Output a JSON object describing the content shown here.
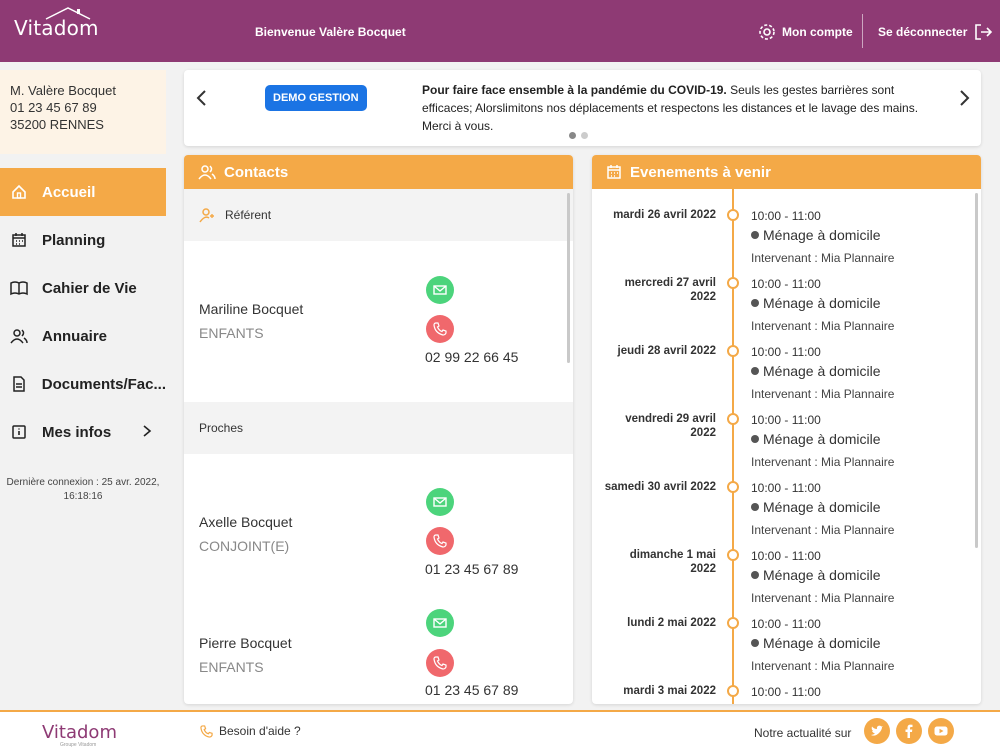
{
  "header": {
    "logo": "Vitadom",
    "welcome": "Bienvenue Valère Bocquet",
    "account_label": "Mon compte",
    "logout_label": "Se déconnecter"
  },
  "user": {
    "name": "M. Valère Bocquet",
    "phone": "01 23 45 67 89",
    "address": "35200 RENNES"
  },
  "menu": [
    {
      "label": "Accueil",
      "icon": "home-icon",
      "active": true
    },
    {
      "label": "Planning",
      "icon": "calendar-icon"
    },
    {
      "label": "Cahier de Vie",
      "icon": "book-icon"
    },
    {
      "label": "Annuaire",
      "icon": "people-icon"
    },
    {
      "label": "Documents/Fac...",
      "icon": "document-icon"
    },
    {
      "label": "Mes infos",
      "icon": "info-icon"
    }
  ],
  "last_login": "Dernière connexion : 25 avr. 2022, 16:18:16",
  "banner": {
    "badge": "DEMO GESTION",
    "text_bold": "Pour faire face ensemble à la pandémie du COVID-19.",
    "text_rest": " Seuls les gestes barrières sont efficaces; Alorslimitons nos déplacements et respectons les distances et le lavage des mains. Merci à vous."
  },
  "contacts": {
    "title": "Contacts",
    "section_referent": "Référent",
    "section_proches": "Proches",
    "referent": [
      {
        "name": "Mariline Bocquet",
        "role": "ENFANTS",
        "phone": "02 99 22 66 45"
      }
    ],
    "proches": [
      {
        "name": "Axelle Bocquet",
        "role": "CONJOINT(E)",
        "phone": "01 23 45 67 89"
      },
      {
        "name": "Pierre Bocquet",
        "role": "ENFANTS",
        "phone": "01 23 45 67 89"
      }
    ]
  },
  "events": {
    "title": "Evenements à venir",
    "items": [
      {
        "date": "mardi 26 avril 2022",
        "time": "10:00 - 11:00",
        "title": "Ménage à domicile",
        "who": "Intervenant : Mia Plannaire"
      },
      {
        "date": "mercredi 27 avril 2022",
        "time": "10:00 - 11:00",
        "title": "Ménage à domicile",
        "who": "Intervenant : Mia Plannaire"
      },
      {
        "date": "jeudi 28 avril 2022",
        "time": "10:00 - 11:00",
        "title": "Ménage à domicile",
        "who": "Intervenant : Mia Plannaire"
      },
      {
        "date": "vendredi 29 avril 2022",
        "time": "10:00 - 11:00",
        "title": "Ménage à domicile",
        "who": "Intervenant : Mia Plannaire"
      },
      {
        "date": "samedi 30 avril 2022",
        "time": "10:00 - 11:00",
        "title": "Ménage à domicile",
        "who": "Intervenant : Mia Plannaire"
      },
      {
        "date": "dimanche 1 mai 2022",
        "time": "10:00 - 11:00",
        "title": "Ménage à domicile",
        "who": "Intervenant : Mia Plannaire"
      },
      {
        "date": "lundi 2 mai 2022",
        "time": "10:00 - 11:00",
        "title": "Ménage à domicile",
        "who": "Intervenant : Mia Plannaire"
      },
      {
        "date": "mardi 3 mai 2022",
        "time": "10:00 - 11:00",
        "title": "",
        "who": ""
      }
    ]
  },
  "footer": {
    "logo": "Vitadom",
    "logo_sub": "Groupe Vitadom",
    "help": "Besoin d'aide ?",
    "news": "Notre actualité sur"
  },
  "colors": {
    "brand": "#8e3a74",
    "accent": "#f4a947",
    "mail": "#4cd47c",
    "phone": "#f0686c",
    "badge": "#1b74e4"
  }
}
